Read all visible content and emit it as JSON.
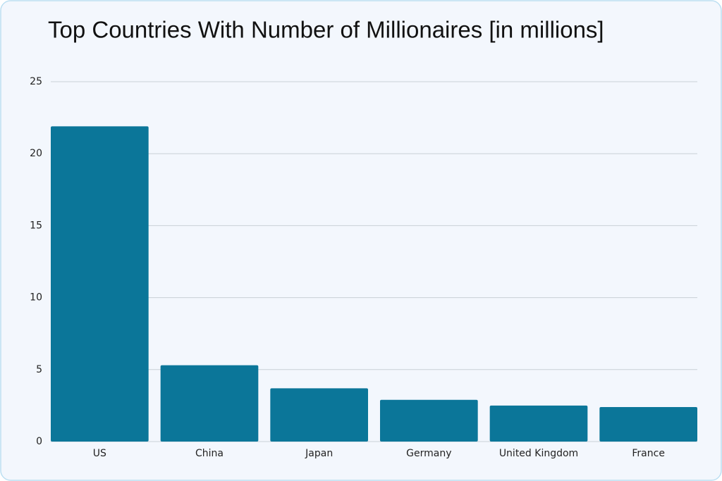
{
  "chart_data": {
    "type": "bar",
    "title": "Top Countries With Number of Millionaires [in millions]",
    "categories": [
      "US",
      "China",
      "Japan",
      "Germany",
      "United Kingdom",
      "France"
    ],
    "values": [
      21.9,
      5.3,
      3.7,
      2.9,
      2.5,
      2.4
    ],
    "color": "#0b7699",
    "ylim": [
      0,
      25
    ],
    "yticks": [
      0,
      5,
      10,
      15,
      20,
      25
    ],
    "grid": true
  }
}
